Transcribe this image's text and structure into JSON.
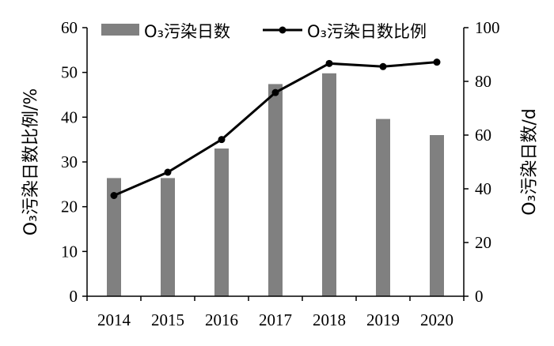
{
  "chart_data": {
    "type": "bar",
    "categories": [
      "2014",
      "2015",
      "2016",
      "2017",
      "2018",
      "2019",
      "2020"
    ],
    "series": [
      {
        "name": "O₃污染日数",
        "type": "bar",
        "axis": "right",
        "values": [
          44,
          44,
          55,
          79,
          83,
          66,
          60
        ],
        "color": "#808080"
      },
      {
        "name": "O₃污染日数比例",
        "type": "line",
        "axis": "left",
        "values": [
          22.5,
          27.7,
          35.0,
          45.5,
          52.0,
          51.3,
          52.3
        ],
        "color": "#000000"
      }
    ],
    "ylabel_left": "O₃污染日数比例/%",
    "ylabel_right": "O₃污染日数/d",
    "ylim_left": [
      0,
      60
    ],
    "yticks_left": [
      "0",
      "10",
      "20",
      "30",
      "40",
      "50",
      "60"
    ],
    "ylim_right": [
      0,
      100
    ],
    "yticks_right": [
      "0",
      "20",
      "40",
      "60",
      "80",
      "100"
    ],
    "grid": false,
    "legend_position": "top"
  }
}
